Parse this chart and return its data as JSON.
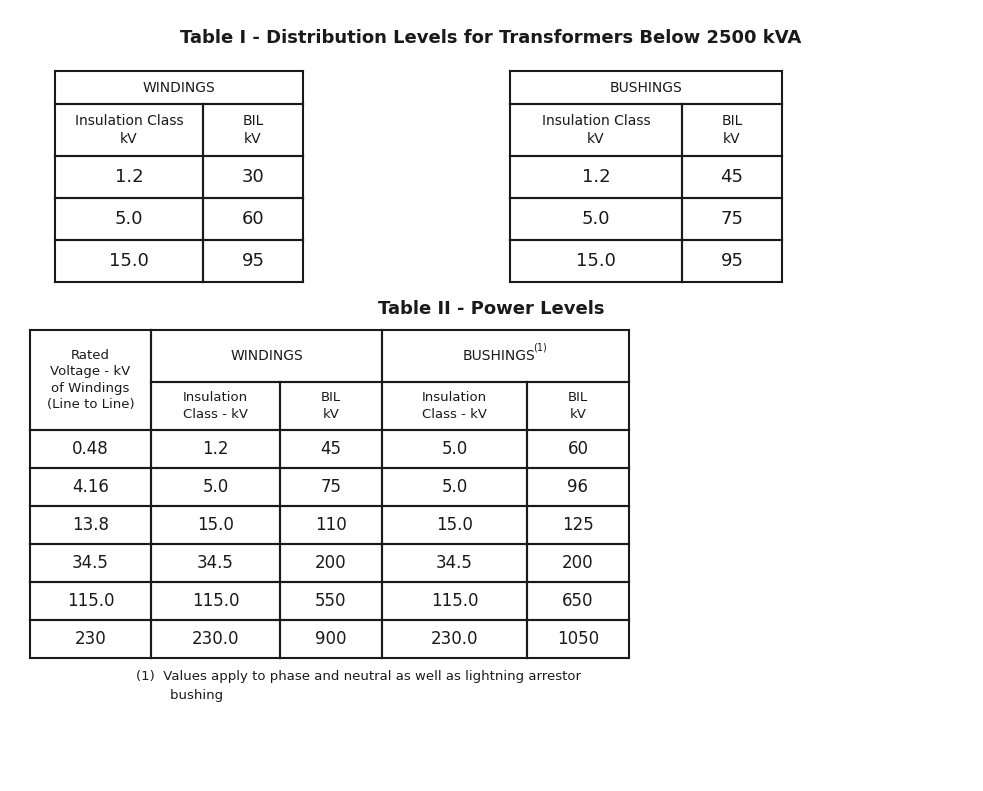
{
  "title1": "Table I - Distribution Levels for Transformers Below 2500 kVA",
  "title2": "Table II - Power Levels",
  "table1_windings_header": "WINDINGS",
  "table1_bushings_header": "BUSHINGS",
  "table1_col_headers": [
    "Insulation Class\nkV",
    "BIL\nkV"
  ],
  "table1_windings_data": [
    [
      "1.2",
      "30"
    ],
    [
      "5.0",
      "60"
    ],
    [
      "15.0",
      "95"
    ]
  ],
  "table1_bushings_data": [
    [
      "1.2",
      "45"
    ],
    [
      "5.0",
      "75"
    ],
    [
      "15.0",
      "95"
    ]
  ],
  "table2_col0_header": "Rated\nVoltage - kV\nof Windings\n(Line to Line)",
  "table2_windings_header": "WINDINGS",
  "table2_bushings_header": "BUSHINGS",
  "table2_sub_headers": [
    "Insulation\nClass - kV",
    "BIL\nkV",
    "Insulation\nClass - kV",
    "BIL\nkV"
  ],
  "table2_data": [
    [
      "0.48",
      "1.2",
      "45",
      "5.0",
      "60"
    ],
    [
      "4.16",
      "5.0",
      "75",
      "5.0",
      "96"
    ],
    [
      "13.8",
      "15.0",
      "110",
      "15.0",
      "125"
    ],
    [
      "34.5",
      "34.5",
      "200",
      "34.5",
      "200"
    ],
    [
      "115.0",
      "115.0",
      "550",
      "115.0",
      "650"
    ],
    [
      "230",
      "230.0",
      "900",
      "230.0",
      "1050"
    ]
  ],
  "bg_color": "#ffffff",
  "text_color": "#1a1a1a",
  "border_color": "#1a1a1a"
}
